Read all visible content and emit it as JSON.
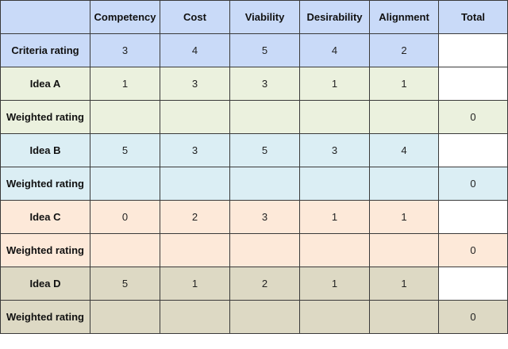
{
  "header": {
    "corner": "",
    "columns": [
      "Competency",
      "Cost",
      "Viability",
      "Desirability",
      "Alignment",
      "Total"
    ]
  },
  "rows": [
    {
      "label": "Criteria rating",
      "values": [
        "3",
        "4",
        "5",
        "4",
        "2"
      ],
      "total": "",
      "color": "#c9daf8"
    },
    {
      "label": "Idea A",
      "values": [
        "1",
        "3",
        "3",
        "1",
        "1"
      ],
      "total": "",
      "color": "#ebf1de"
    },
    {
      "label": "Weighted rating",
      "values": [
        "",
        "",
        "",
        "",
        ""
      ],
      "total": "0",
      "color": "#ebf1de"
    },
    {
      "label": "Idea B",
      "values": [
        "5",
        "3",
        "5",
        "3",
        "4"
      ],
      "total": "",
      "color": "#dbeef4"
    },
    {
      "label": "Weighted rating",
      "values": [
        "",
        "",
        "",
        "",
        ""
      ],
      "total": "0",
      "color": "#dbeef4"
    },
    {
      "label": "Idea C",
      "values": [
        "0",
        "2",
        "3",
        "1",
        "1"
      ],
      "total": "",
      "color": "#fde9d9"
    },
    {
      "label": "Weighted rating",
      "values": [
        "",
        "",
        "",
        "",
        ""
      ],
      "total": "0",
      "color": "#fde9d9"
    },
    {
      "label": "Idea D",
      "values": [
        "5",
        "1",
        "2",
        "1",
        "1"
      ],
      "total": "",
      "color": "#ddd9c4"
    },
    {
      "label": "Weighted rating",
      "values": [
        "",
        "",
        "",
        "",
        ""
      ],
      "total": "0",
      "color": "#ddd9c4"
    }
  ],
  "colors": {
    "header": "#c9daf8",
    "total_blank": "#ffffff",
    "border": "#3a3a3a"
  }
}
